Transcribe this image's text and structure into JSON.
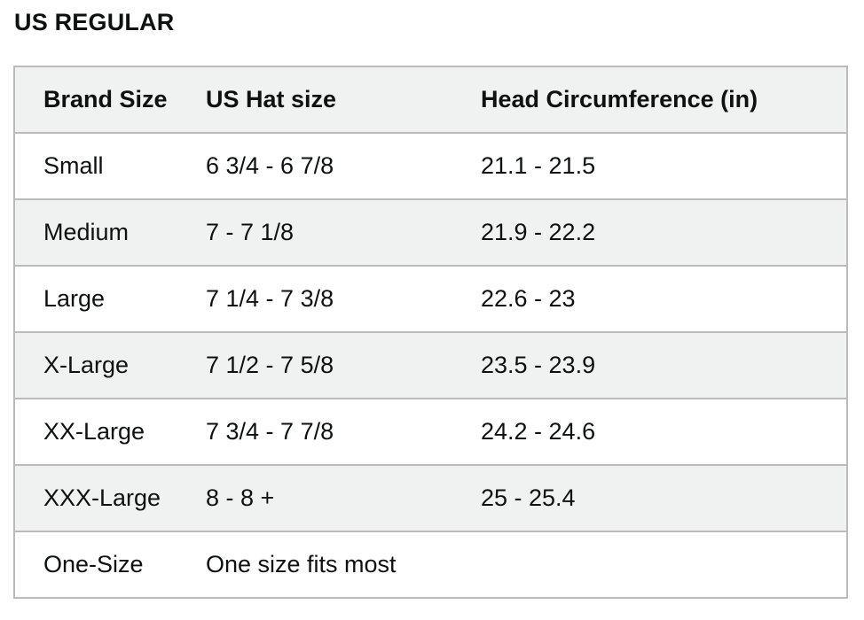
{
  "title": "US REGULAR",
  "table": {
    "headers": [
      "Brand Size",
      "US Hat size",
      "Head Circumference (in)"
    ],
    "rows": [
      [
        "Small",
        "6 3/4 - 6 7/8",
        "21.1 - 21.5"
      ],
      [
        "Medium",
        "7 - 7 1/8",
        "21.9 - 22.2"
      ],
      [
        "Large",
        "7 1/4 - 7 3/8",
        "22.6 - 23"
      ],
      [
        "X-Large",
        "7 1/2 - 7 5/8",
        "23.5 - 23.9"
      ],
      [
        "XX-Large",
        "7 3/4 - 7 7/8",
        "24.2 - 24.6"
      ],
      [
        "XXX-Large",
        "8 - 8 +",
        "25 - 25.4"
      ],
      [
        "One-Size",
        "One size fits most",
        ""
      ]
    ]
  }
}
